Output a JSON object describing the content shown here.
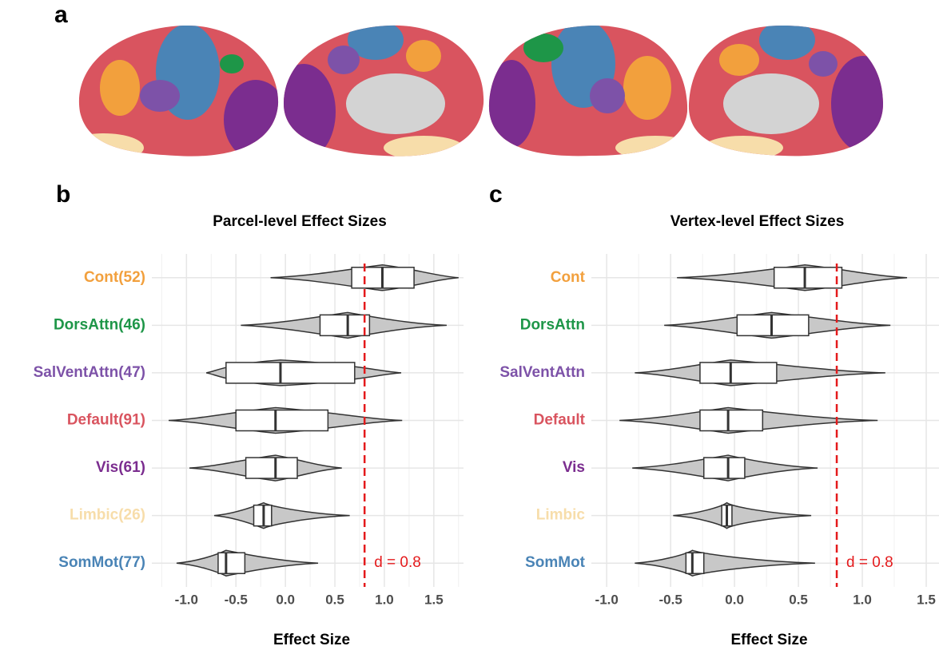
{
  "brain_panel": {
    "label": "a"
  },
  "chart_data": [
    {
      "type": "violin-box",
      "panel": "b",
      "title": "Parcel-level Effect Sizes",
      "x_label": "Effect Size",
      "categories": [
        "Cont(52)",
        "DorsAttn(46)",
        "SalVentAttn(47)",
        "Default(91)",
        "Vis(61)",
        "Limbic(26)",
        "SomMot(77)"
      ],
      "category_colors": [
        "#f2a03d",
        "#1e9648",
        "#7d52a8",
        "#d9545f",
        "#7b2d8f",
        "#f7ddaa",
        "#4a84b6"
      ],
      "violin_min": [
        -0.15,
        -0.45,
        -0.8,
        -1.18,
        -0.97,
        -0.72,
        -1.1
      ],
      "violin_max": [
        1.75,
        1.63,
        1.17,
        1.18,
        0.57,
        0.65,
        0.33
      ],
      "q1": [
        0.67,
        0.35,
        -0.6,
        -0.5,
        -0.4,
        -0.32,
        -0.68
      ],
      "median": [
        0.98,
        0.63,
        -0.05,
        -0.1,
        -0.1,
        -0.22,
        -0.6
      ],
      "q3": [
        1.3,
        0.85,
        0.7,
        0.43,
        0.12,
        -0.14,
        -0.41
      ],
      "xlim": [
        -1.35,
        1.8
      ],
      "xticks": [
        {
          "value": -1.0,
          "label": "-1.0"
        },
        -0.5,
        {
          "value": 0.0,
          "label": "0.0"
        },
        0.5,
        {
          "value": 1.0,
          "label": "1.0"
        },
        1.5
      ],
      "reference_line": {
        "value": 0.8,
        "label": "d = 0.8",
        "color": "#e41a1c"
      },
      "grid": true
    },
    {
      "type": "violin-box",
      "panel": "c",
      "title": "Vertex-level Effect Sizes",
      "x_label": "Effect Size",
      "categories": [
        "Cont",
        "DorsAttn",
        "SalVentAttn",
        "Default",
        "Vis",
        "Limbic",
        "SomMot"
      ],
      "category_colors": [
        "#f2a03d",
        "#1e9648",
        "#7d52a8",
        "#d9545f",
        "#7b2d8f",
        "#f7ddaa",
        "#4a84b6"
      ],
      "violin_min": [
        -0.45,
        -0.55,
        -0.78,
        -0.9,
        -0.8,
        -0.48,
        -0.78
      ],
      "violin_max": [
        1.35,
        1.22,
        1.18,
        1.12,
        0.65,
        0.6,
        0.63
      ],
      "q1": [
        0.31,
        0.02,
        -0.27,
        -0.27,
        -0.24,
        -0.1,
        -0.38
      ],
      "median": [
        0.55,
        0.29,
        -0.03,
        -0.05,
        -0.05,
        -0.06,
        -0.33
      ],
      "q3": [
        0.84,
        0.58,
        0.33,
        0.22,
        0.08,
        -0.02,
        -0.24
      ],
      "xlim": [
        -1.12,
        1.6
      ],
      "xticks": [
        {
          "value": -1.0,
          "label": "-1.0"
        },
        -0.5,
        {
          "value": 0.0,
          "label": "0.0"
        },
        0.5,
        {
          "value": 1.0,
          "label": "1.0"
        },
        1.5
      ],
      "reference_line": {
        "value": 0.8,
        "label": "d = 0.8",
        "color": "#e41a1c"
      },
      "grid": true
    }
  ]
}
